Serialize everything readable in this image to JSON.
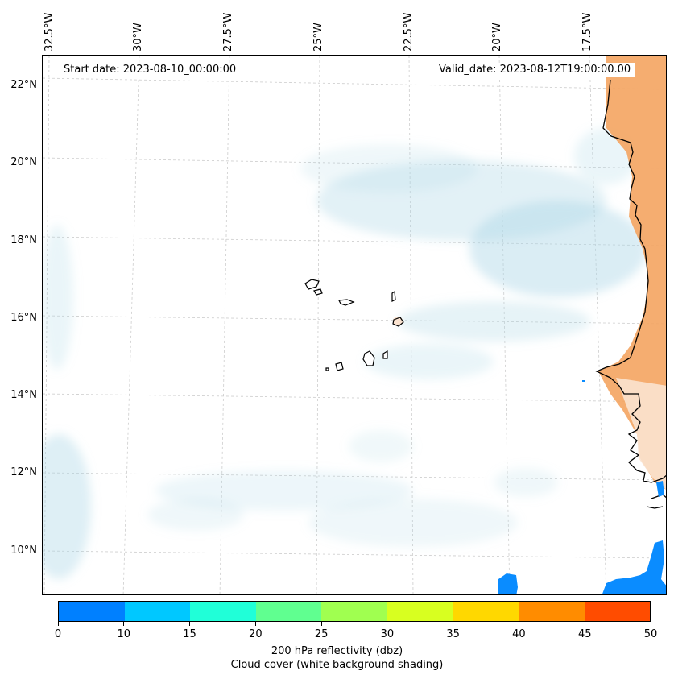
{
  "map": {
    "header_left": "Start date: 2023-08-10_00:00:00",
    "header_right": "Valid_date: 2023-08-12T19:00:00.00",
    "lon_labels": [
      "32.5°W",
      "30°W",
      "27.5°W",
      "25°W",
      "22.5°W",
      "20°W",
      "17.5°W"
    ],
    "lat_labels": [
      "22°N",
      "20°N",
      "18°N",
      "16°N",
      "14°N",
      "12°N",
      "10°N"
    ],
    "colors": {
      "ocean": "#ffffff",
      "cloud": "#add8e6",
      "land_warm": "#f4a460",
      "coastline": "#000000",
      "gridline": "#cccccc"
    }
  },
  "colorbar": {
    "colors": [
      "#0080ff",
      "#00c8ff",
      "#20ffd8",
      "#60ff90",
      "#a0ff50",
      "#d8ff20",
      "#ffd800",
      "#ff8c00",
      "#ff4c00"
    ],
    "ticks": [
      "0",
      "10",
      "15",
      "20",
      "25",
      "30",
      "35",
      "40",
      "45",
      "50"
    ],
    "title_line1": "200 hPa reflectivity (dbz)",
    "title_line2": "Cloud cover (white background shading)"
  }
}
